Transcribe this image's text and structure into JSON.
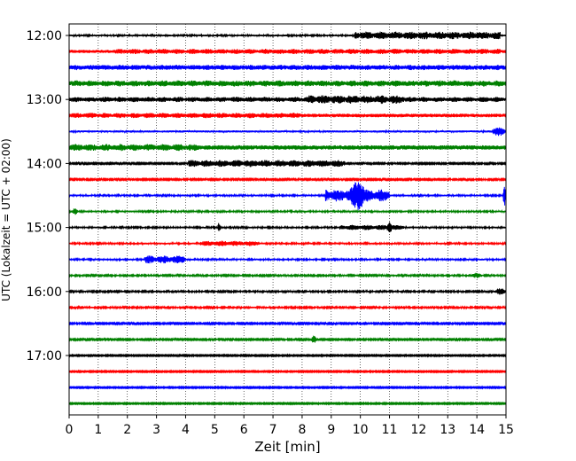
{
  "chart_data": {
    "type": "line",
    "title": "",
    "xlabel": "Zeit  [min]",
    "ylabel": "UTC (Lokalzeit = UTC + 02:00)",
    "xlim": [
      0,
      15
    ],
    "x_ticks": [
      "0",
      "1",
      "2",
      "3",
      "4",
      "5",
      "6",
      "7",
      "8",
      "9",
      "10",
      "11",
      "12",
      "13",
      "14",
      "15"
    ],
    "grid": "vertical dotted at each minute",
    "series": [
      {
        "start": "12:00",
        "color": "#000000",
        "noise": 1.0,
        "events": [
          {
            "from": 9.8,
            "to": 14.8,
            "amp": 4.5
          }
        ]
      },
      {
        "start": "12:15",
        "color": "#ff0000",
        "noise": 1.8,
        "events": [
          {
            "from": 1.5,
            "to": 14.8,
            "amp": 3
          }
        ]
      },
      {
        "start": "12:30",
        "color": "#0000ff",
        "noise": 2.5,
        "events": [
          {
            "from": 0,
            "to": 15,
            "amp": 3
          }
        ]
      },
      {
        "start": "12:45",
        "color": "#008000",
        "noise": 2.5,
        "events": [
          {
            "from": 0,
            "to": 15,
            "amp": 3.5
          }
        ]
      },
      {
        "start": "13:00",
        "color": "#000000",
        "noise": 2.0,
        "events": [
          {
            "from": 0,
            "to": 15,
            "amp": 3
          },
          {
            "from": 8.2,
            "to": 11.5,
            "amp": 5
          }
        ]
      },
      {
        "start": "13:15",
        "color": "#ff0000",
        "noise": 2.0,
        "events": [
          {
            "from": 0,
            "to": 8,
            "amp": 3
          }
        ]
      },
      {
        "start": "13:30",
        "color": "#0000ff",
        "noise": 1.2,
        "events": [
          {
            "from": 14.5,
            "to": 15,
            "amp": 4
          }
        ]
      },
      {
        "start": "13:45",
        "color": "#008000",
        "noise": 2.5,
        "events": [
          {
            "from": 0,
            "to": 4.5,
            "amp": 4
          }
        ]
      },
      {
        "start": "14:00",
        "color": "#000000",
        "noise": 0.8,
        "events": [
          {
            "from": 4.1,
            "to": 9.5,
            "amp": 4
          }
        ]
      },
      {
        "start": "14:15",
        "color": "#ff0000",
        "noise": 0.8,
        "events": []
      },
      {
        "start": "14:30",
        "color": "#0000ff",
        "noise": 1.0,
        "events": [
          {
            "from": 8.8,
            "to": 11,
            "amp": 7
          },
          {
            "from": 9.6,
            "to": 10.2,
            "amp": 13
          },
          {
            "from": 14.9,
            "to": 15,
            "amp": 9
          }
        ]
      },
      {
        "start": "14:45",
        "color": "#008000",
        "noise": 1.0,
        "events": [
          {
            "from": 0.1,
            "to": 0.3,
            "amp": 3
          }
        ]
      },
      {
        "start": "15:00",
        "color": "#000000",
        "noise": 1.0,
        "events": [
          {
            "from": 5.1,
            "to": 5.2,
            "amp": 5
          },
          {
            "from": 9.3,
            "to": 11.5,
            "amp": 3
          },
          {
            "from": 10.9,
            "to": 11.1,
            "amp": 5
          }
        ]
      },
      {
        "start": "15:15",
        "color": "#ff0000",
        "noise": 1.0,
        "events": [
          {
            "from": 4.5,
            "to": 6.5,
            "amp": 3
          }
        ]
      },
      {
        "start": "15:30",
        "color": "#0000ff",
        "noise": 1.0,
        "events": [
          {
            "from": 2.6,
            "to": 4.0,
            "amp": 4.5
          }
        ]
      },
      {
        "start": "15:45",
        "color": "#008000",
        "noise": 0.9,
        "events": [
          {
            "from": 13.8,
            "to": 14.2,
            "amp": 2.5
          }
        ]
      },
      {
        "start": "16:00",
        "color": "#000000",
        "noise": 0.9,
        "events": [
          {
            "from": 14.6,
            "to": 15,
            "amp": 3
          }
        ]
      },
      {
        "start": "16:15",
        "color": "#ff0000",
        "noise": 0.9,
        "events": []
      },
      {
        "start": "16:30",
        "color": "#0000ff",
        "noise": 0.8,
        "events": []
      },
      {
        "start": "16:45",
        "color": "#008000",
        "noise": 0.8,
        "events": [
          {
            "from": 8.3,
            "to": 8.5,
            "amp": 3.5
          }
        ]
      },
      {
        "start": "17:00",
        "color": "#000000",
        "noise": 0.7,
        "events": []
      },
      {
        "start": "17:15",
        "color": "#ff0000",
        "noise": 0.7,
        "events": []
      },
      {
        "start": "17:30",
        "color": "#0000ff",
        "noise": 0.7,
        "events": []
      },
      {
        "start": "17:45",
        "color": "#008000",
        "noise": 0.7,
        "events": []
      }
    ],
    "y_ticks": [
      "12:00",
      "13:00",
      "14:00",
      "15:00",
      "16:00",
      "17:00"
    ]
  }
}
